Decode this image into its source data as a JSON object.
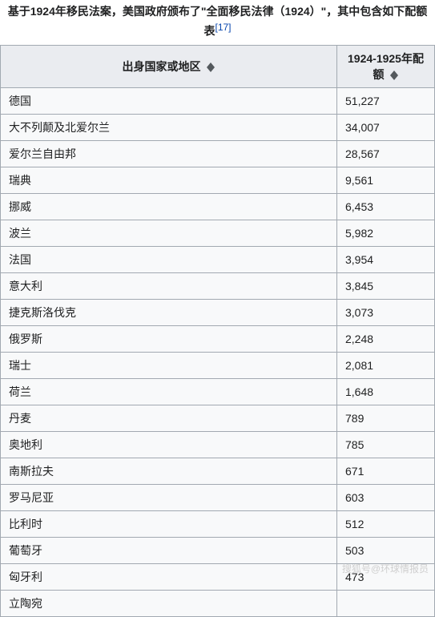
{
  "caption": {
    "prefix": "基于1924年移民法案，美国政府颁布了\"全面移民法律（1924）\"，其中包含如下配额表",
    "ref": "[17]"
  },
  "columns": {
    "country": "出身国家或地区",
    "quota": "1924-1925年配额"
  },
  "rows": [
    {
      "country": "德国",
      "quota": "51,227"
    },
    {
      "country": "大不列颠及北爱尔兰",
      "quota": "34,007"
    },
    {
      "country": "爱尔兰自由邦",
      "quota": "28,567"
    },
    {
      "country": "瑞典",
      "quota": "9,561"
    },
    {
      "country": "挪威",
      "quota": "6,453"
    },
    {
      "country": "波兰",
      "quota": "5,982"
    },
    {
      "country": "法国",
      "quota": "3,954"
    },
    {
      "country": "意大利",
      "quota": "3,845"
    },
    {
      "country": "捷克斯洛伐克",
      "quota": "3,073"
    },
    {
      "country": "俄罗斯",
      "quota": "2,248"
    },
    {
      "country": "瑞士",
      "quota": "2,081"
    },
    {
      "country": "荷兰",
      "quota": "1,648"
    },
    {
      "country": "丹麦",
      "quota": "789"
    },
    {
      "country": "奥地利",
      "quota": "785"
    },
    {
      "country": "南斯拉夫",
      "quota": "671"
    },
    {
      "country": "罗马尼亚",
      "quota": "603"
    },
    {
      "country": "比利时",
      "quota": "512"
    },
    {
      "country": "葡萄牙",
      "quota": "503"
    },
    {
      "country": "匈牙利",
      "quota": "473"
    },
    {
      "country": "立陶宛",
      "quota": ""
    }
  ],
  "watermark": "搜狐号@环球情报员",
  "styles": {
    "header_bg": "#eaecf0",
    "cell_bg": "#f8f9fa",
    "border_color": "#a2a9b1",
    "link_color": "#0645ad",
    "text_color": "#202122",
    "watermark_color": "#cfcfcf"
  }
}
